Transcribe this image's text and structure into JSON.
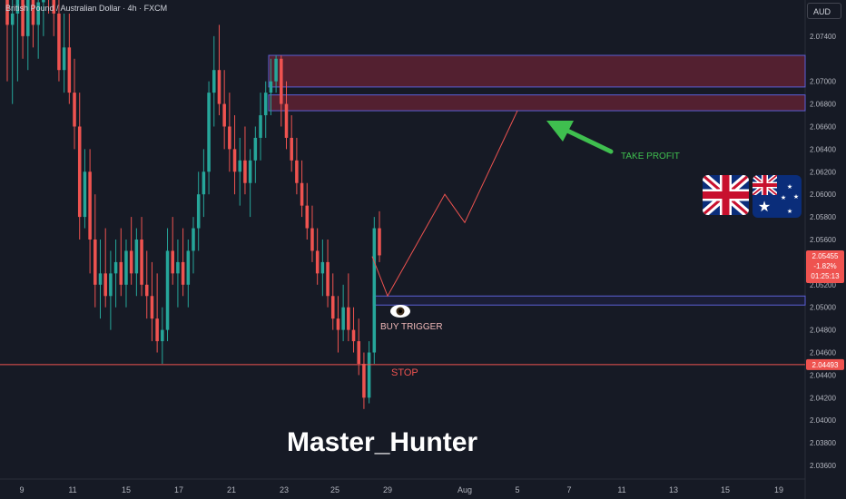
{
  "header": {
    "title": "British Pound / Australian Dollar · 4h · FXCM"
  },
  "currency_label": "AUD",
  "watermark": "Master_Hunter",
  "colors": {
    "bull": "#26a69a",
    "bear": "#ef5350",
    "zone": "#5e2232",
    "zone_border": "#5b5fd6",
    "arrow": "#3fbf4f",
    "path": "#ef5350",
    "stop": "#ef5350"
  },
  "chart_data": {
    "type": "candlestick",
    "symbol": "GBPAUD",
    "timeframe": "4h",
    "ylim": [
      2.0348,
      2.0772
    ],
    "y_ticks": [
      "2.07400",
      "2.07000",
      "2.06800",
      "2.06600",
      "2.06400",
      "2.06200",
      "2.06000",
      "2.05800",
      "2.05600",
      "2.05200",
      "2.05000",
      "2.04800",
      "2.04600",
      "2.04400",
      "2.04200",
      "2.04000",
      "2.03800",
      "2.03600"
    ],
    "x_ticks": [
      "9",
      "11",
      "15",
      "17",
      "21",
      "23",
      "25",
      "29",
      "Aug",
      "5",
      "7",
      "11",
      "13",
      "15",
      "19"
    ],
    "last_price": {
      "value": 2.05455,
      "label": "2.05455",
      "change": "-1.82%",
      "countdown": "01:25:13"
    },
    "stop": {
      "value": 2.04493,
      "label": "2.04493",
      "text": "STOP"
    },
    "zones": [
      {
        "y1": 2.0723,
        "y2": 2.0695,
        "role": "resistance-upper"
      },
      {
        "y1": 2.0688,
        "y2": 2.0674,
        "role": "resistance-lower"
      },
      {
        "y1": 2.051,
        "y2": 2.0502,
        "role": "buy-trigger"
      }
    ],
    "projection": [
      {
        "x": "27",
        "y": 2.0545
      },
      {
        "x": "29",
        "y": 2.051
      },
      {
        "x": "31",
        "y": 2.06
      },
      {
        "x": "Aug",
        "y": 2.0575
      },
      {
        "x": "5",
        "y": 2.0674
      }
    ],
    "annotations": {
      "take_profit": "TAKE PROFIT",
      "buy_trigger": "BUY TRIGGER"
    },
    "candles": [
      [
        2.082,
        2.084,
        2.07,
        2.075
      ],
      [
        2.075,
        2.079,
        2.068,
        2.076
      ],
      [
        2.076,
        2.08,
        2.07,
        2.079
      ],
      [
        2.079,
        2.081,
        2.072,
        2.074
      ],
      [
        2.074,
        2.079,
        2.071,
        2.078
      ],
      [
        2.078,
        2.081,
        2.073,
        2.075
      ],
      [
        2.075,
        2.079,
        2.072,
        2.077
      ],
      [
        2.077,
        2.08,
        2.074,
        2.079
      ],
      [
        2.079,
        2.082,
        2.076,
        2.078
      ],
      [
        2.078,
        2.081,
        2.074,
        2.076
      ],
      [
        2.076,
        2.079,
        2.07,
        2.071
      ],
      [
        2.071,
        2.076,
        2.069,
        2.073
      ],
      [
        2.073,
        2.076,
        2.068,
        2.069
      ],
      [
        2.069,
        2.072,
        2.064,
        2.066
      ],
      [
        2.066,
        2.069,
        2.056,
        2.058
      ],
      [
        2.058,
        2.064,
        2.057,
        2.062
      ],
      [
        2.062,
        2.064,
        2.053,
        2.056
      ],
      [
        2.056,
        2.06,
        2.05,
        2.052
      ],
      [
        2.052,
        2.056,
        2.049,
        2.053
      ],
      [
        2.053,
        2.057,
        2.05,
        2.051
      ],
      [
        2.051,
        2.055,
        2.048,
        2.053
      ],
      [
        2.053,
        2.056,
        2.05,
        2.054
      ],
      [
        2.054,
        2.057,
        2.051,
        2.052
      ],
      [
        2.052,
        2.056,
        2.05,
        2.055
      ],
      [
        2.055,
        2.058,
        2.052,
        2.053
      ],
      [
        2.053,
        2.057,
        2.051,
        2.056
      ],
      [
        2.056,
        2.058,
        2.051,
        2.052
      ],
      [
        2.052,
        2.055,
        2.049,
        2.051
      ],
      [
        2.051,
        2.054,
        2.047,
        2.049
      ],
      [
        2.049,
        2.053,
        2.046,
        2.047
      ],
      [
        2.047,
        2.05,
        2.045,
        2.048
      ],
      [
        2.048,
        2.057,
        2.047,
        2.055
      ],
      [
        2.055,
        2.058,
        2.052,
        2.053
      ],
      [
        2.053,
        2.056,
        2.05,
        2.054
      ],
      [
        2.054,
        2.057,
        2.051,
        2.052
      ],
      [
        2.052,
        2.056,
        2.05,
        2.055
      ],
      [
        2.055,
        2.058,
        2.053,
        2.057
      ],
      [
        2.057,
        2.062,
        2.055,
        2.06
      ],
      [
        2.06,
        2.064,
        2.058,
        2.062
      ],
      [
        2.062,
        2.07,
        2.06,
        2.069
      ],
      [
        2.069,
        2.074,
        2.066,
        2.071
      ],
      [
        2.071,
        2.075,
        2.067,
        2.068
      ],
      [
        2.068,
        2.071,
        2.064,
        2.066
      ],
      [
        2.066,
        2.069,
        2.062,
        2.064
      ],
      [
        2.064,
        2.067,
        2.06,
        2.062
      ],
      [
        2.062,
        2.065,
        2.059,
        2.063
      ],
      [
        2.063,
        2.066,
        2.06,
        2.061
      ],
      [
        2.061,
        2.064,
        2.058,
        2.063
      ],
      [
        2.063,
        2.066,
        2.061,
        2.065
      ],
      [
        2.065,
        2.069,
        2.063,
        2.067
      ],
      [
        2.067,
        2.07,
        2.065,
        2.069
      ],
      [
        2.069,
        2.072,
        2.067,
        2.07
      ],
      [
        2.07,
        2.0723,
        2.069,
        2.072
      ],
      [
        2.072,
        2.0723,
        2.066,
        2.068
      ],
      [
        2.068,
        2.07,
        2.064,
        2.065
      ],
      [
        2.065,
        2.067,
        2.062,
        2.063
      ],
      [
        2.063,
        2.065,
        2.06,
        2.061
      ],
      [
        2.061,
        2.063,
        2.058,
        2.059
      ],
      [
        2.059,
        2.061,
        2.056,
        2.057
      ],
      [
        2.057,
        2.059,
        2.054,
        2.055
      ],
      [
        2.055,
        2.057,
        2.052,
        2.053
      ],
      [
        2.053,
        2.056,
        2.051,
        2.054
      ],
      [
        2.054,
        2.056,
        2.05,
        2.051
      ],
      [
        2.051,
        2.053,
        2.048,
        2.049
      ],
      [
        2.049,
        2.051,
        2.046,
        2.048
      ],
      [
        2.048,
        2.052,
        2.047,
        2.05
      ],
      [
        2.05,
        2.053,
        2.047,
        2.048
      ],
      [
        2.048,
        2.05,
        2.046,
        2.047
      ],
      [
        2.047,
        2.049,
        2.044,
        2.045
      ],
      [
        2.045,
        2.046,
        2.041,
        2.042
      ],
      [
        2.042,
        2.047,
        2.0415,
        2.046
      ],
      [
        2.046,
        2.058,
        2.045,
        2.057
      ],
      [
        2.057,
        2.0585,
        2.054,
        2.0546
      ]
    ]
  }
}
